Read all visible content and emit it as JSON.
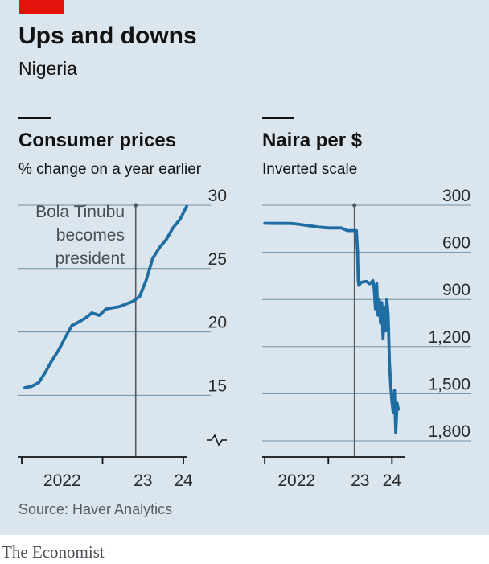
{
  "header": {
    "title": "Ups and downs",
    "subtitle": "Nigeria"
  },
  "source": "Source: Haver Analytics",
  "brand": "The Economist",
  "colors": {
    "line": "#1f6ea3",
    "accent": "#e3120b",
    "grid": "#6d8fa8",
    "background": "#dbe5ed"
  },
  "chart_data": [
    {
      "type": "line",
      "title": "Consumer prices",
      "subtitle": "% change on a year earlier",
      "yticks": [
        "30",
        "25",
        "20",
        "15"
      ],
      "ytick_values": [
        30,
        25,
        20,
        15
      ],
      "ylim": [
        13.5,
        30
      ],
      "y_break": true,
      "x_labels": [
        "2022",
        "23",
        "24"
      ],
      "x_label_positions": [
        2022.5,
        2023.5,
        2024.0
      ],
      "xlim": [
        2021.96,
        2024.0
      ],
      "annotation": {
        "text": [
          "Bola Tinubu",
          "becomes",
          "president"
        ],
        "x": 2023.41
      },
      "series": [
        {
          "x": [
            2022.04,
            2022.12,
            2022.21,
            2022.29,
            2022.37,
            2022.46,
            2022.54,
            2022.62,
            2022.71,
            2022.79,
            2022.87,
            2022.96,
            2023.04,
            2023.12,
            2023.21,
            2023.29,
            2023.37,
            2023.46,
            2023.54,
            2023.62,
            2023.71,
            2023.79,
            2023.87,
            2023.96,
            2024.04
          ],
          "values": [
            15.6,
            15.7,
            16.0,
            16.8,
            17.7,
            18.6,
            19.6,
            20.5,
            20.8,
            21.1,
            21.5,
            21.3,
            21.8,
            21.9,
            22.0,
            22.2,
            22.4,
            22.8,
            24.1,
            25.8,
            26.7,
            27.3,
            28.2,
            28.9,
            29.9
          ]
        }
      ]
    },
    {
      "type": "line",
      "title": "Naira per $",
      "subtitle": "Inverted scale",
      "yticks": [
        "300",
        "600",
        "900",
        "1,200",
        "1,500",
        "1,800"
      ],
      "ytick_values": [
        300,
        600,
        900,
        1200,
        1500,
        1800
      ],
      "ylim": [
        300,
        1800
      ],
      "inverted": true,
      "x_labels": [
        "2022",
        "23",
        "24"
      ],
      "x_label_positions": [
        2022.5,
        2023.5,
        2024.0
      ],
      "xlim": [
        2021.96,
        2024.16
      ],
      "annotation": {
        "text": [],
        "x": 2023.41
      },
      "series": [
        {
          "x": [
            2022.0,
            2022.2,
            2022.4,
            2022.5,
            2022.65,
            2022.85,
            2023.0,
            2023.2,
            2023.3,
            2023.44,
            2023.46,
            2023.47,
            2023.48,
            2023.52,
            2023.6,
            2023.65,
            2023.7,
            2023.72,
            2023.74,
            2023.76,
            2023.78,
            2023.8,
            2023.82,
            2023.84,
            2023.86,
            2023.88,
            2023.9,
            2023.92,
            2023.94,
            2023.96,
            2023.98,
            2024.0,
            2024.02,
            2024.04,
            2024.06,
            2024.08,
            2024.1
          ],
          "values": [
            415,
            416,
            416,
            420,
            428,
            440,
            445,
            445,
            462,
            462,
            600,
            780,
            810,
            790,
            785,
            800,
            780,
            830,
            960,
            800,
            1000,
            900,
            1050,
            920,
            1150,
            950,
            1100,
            900,
            1000,
            1300,
            1450,
            1550,
            1620,
            1480,
            1750,
            1560,
            1600
          ]
        }
      ]
    }
  ]
}
